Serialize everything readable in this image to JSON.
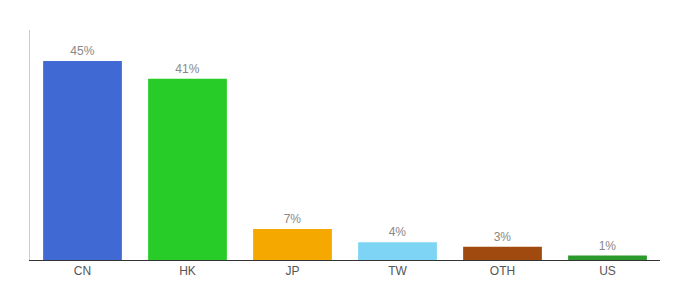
{
  "chart_data": {
    "type": "bar",
    "categories": [
      "CN",
      "HK",
      "JP",
      "TW",
      "OTH",
      "US"
    ],
    "values": [
      45,
      41,
      7,
      4,
      3,
      1
    ],
    "value_labels": [
      "45%",
      "41%",
      "7%",
      "4%",
      "3%",
      "1%"
    ],
    "colors": [
      "#4169d4",
      "#28cc28",
      "#f5a800",
      "#7dd4f5",
      "#a04a10",
      "#2a9a2a"
    ],
    "ylim": [
      0,
      52
    ],
    "data_labels": true,
    "tick_labels": "x",
    "grid": false
  }
}
